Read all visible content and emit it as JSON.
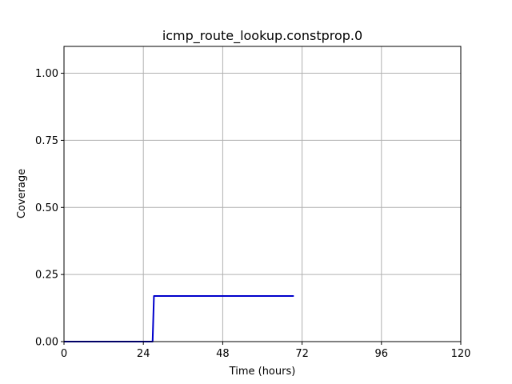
{
  "chart_data": {
    "type": "line",
    "title": "icmp_route_lookup.constprop.0",
    "xlabel": "Time (hours)",
    "ylabel": "Coverage",
    "xlim": [
      0,
      120
    ],
    "ylim": [
      0,
      1.1
    ],
    "xticks": [
      0,
      24,
      48,
      72,
      96,
      120
    ],
    "xtick_labels": [
      "0",
      "24",
      "48",
      "72",
      "96",
      "120"
    ],
    "yticks": [
      0.0,
      0.25,
      0.5,
      0.75,
      1.0
    ],
    "ytick_labels": [
      "0.00",
      "0.25",
      "0.50",
      "0.75",
      "1.00"
    ],
    "grid": true,
    "series": [
      {
        "color": "#0000cc",
        "x": [
          0,
          26.8,
          27.2,
          69.5
        ],
        "y": [
          0,
          0,
          0.17,
          0.17
        ]
      }
    ]
  }
}
